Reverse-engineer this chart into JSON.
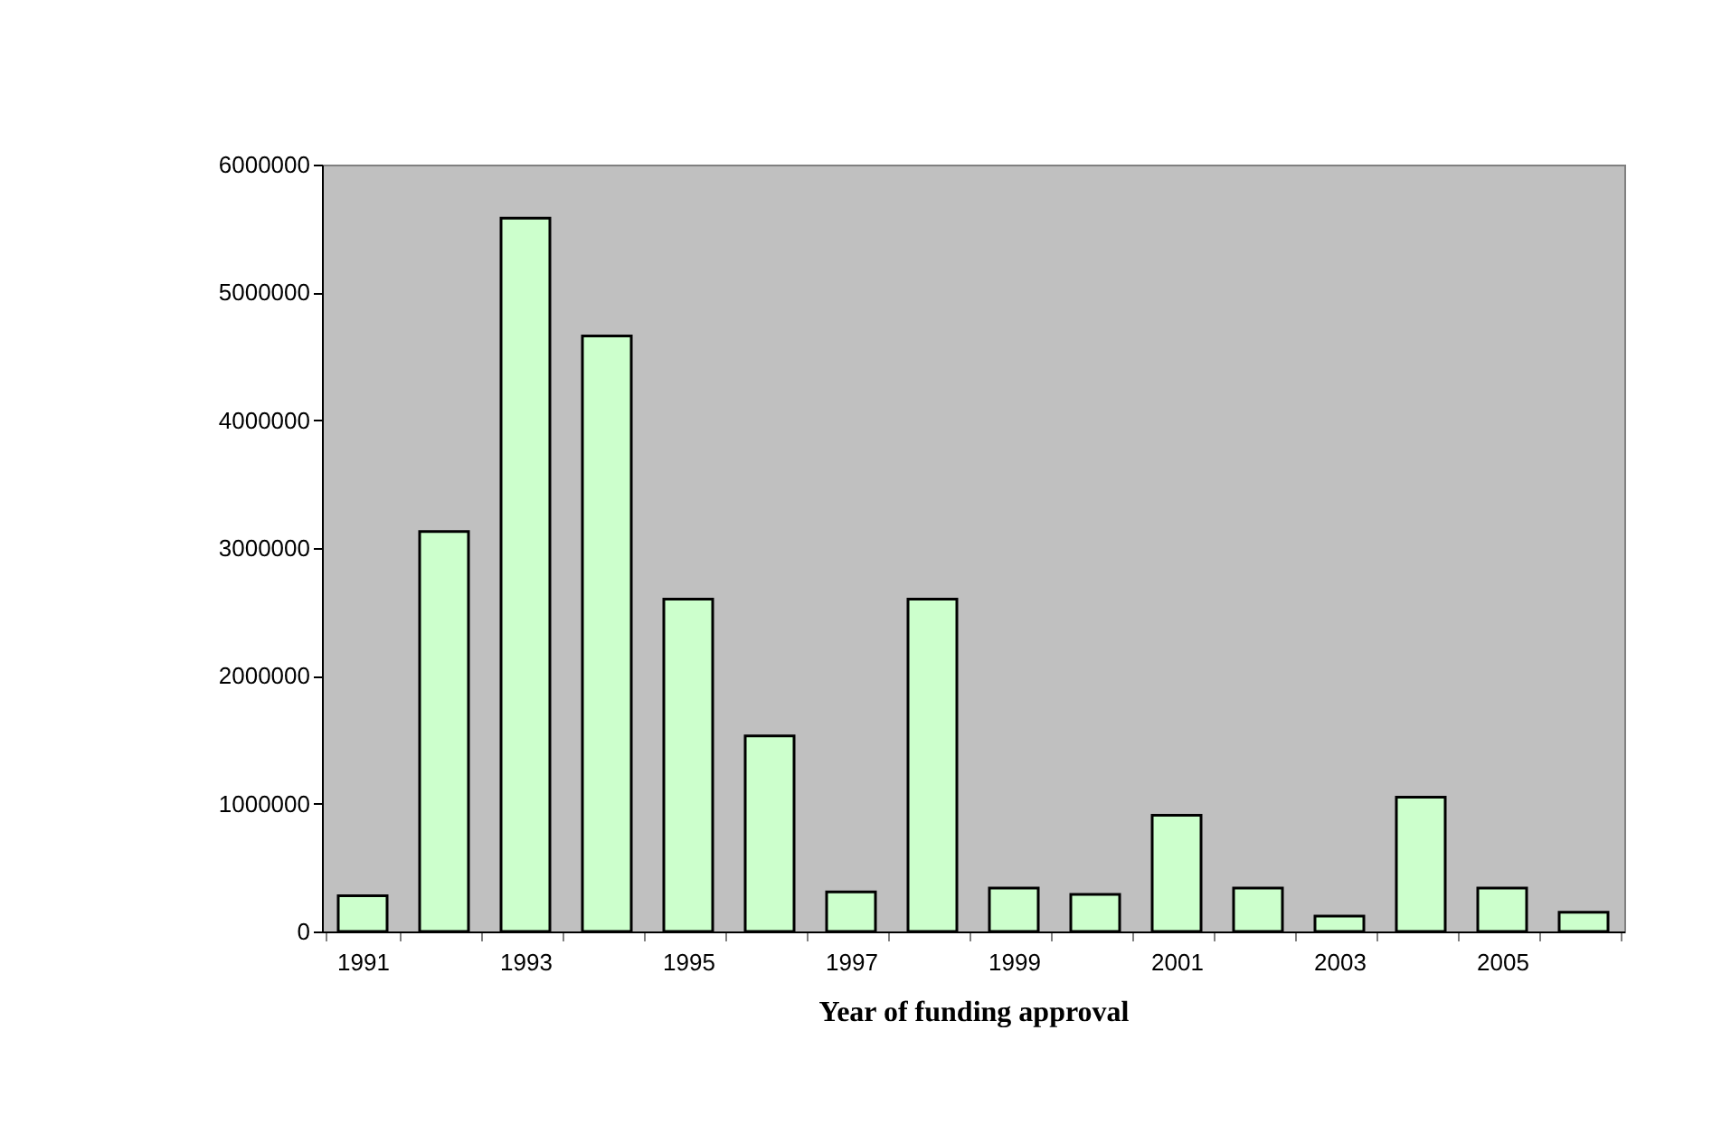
{
  "chart_data": {
    "type": "bar",
    "xlabel": "Year of funding approval",
    "categories": [
      "1991",
      null,
      "1993",
      null,
      "1995",
      null,
      "1997",
      null,
      "1999",
      null,
      "2001",
      null,
      "2003",
      null,
      "2005",
      null
    ],
    "values": [
      280000,
      3130000,
      5580000,
      4660000,
      2600000,
      1530000,
      310000,
      2600000,
      340000,
      290000,
      910000,
      340000,
      120000,
      1050000,
      340000,
      150000
    ],
    "color": "#ccffcc",
    "ylim": [
      0,
      6000000
    ],
    "yticks": [
      0,
      1000000,
      2000000,
      3000000,
      4000000,
      5000000,
      6000000
    ],
    "grid": false
  }
}
